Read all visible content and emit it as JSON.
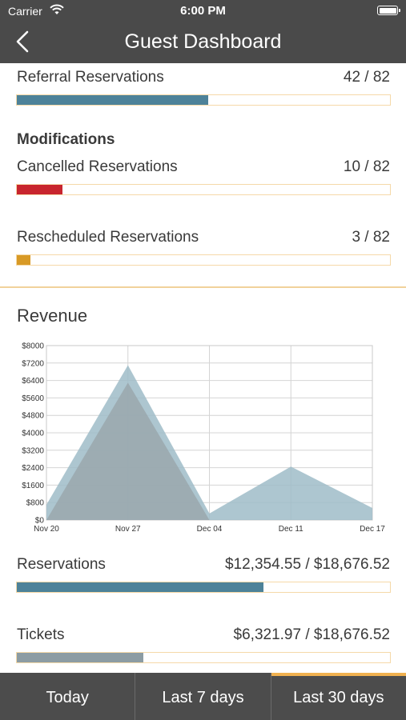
{
  "status": {
    "carrier": "Carrier",
    "time": "6:00 PM"
  },
  "nav": {
    "title": "Guest Dashboard"
  },
  "referral": {
    "label": "Referral Reservations",
    "value": "42 / 82",
    "fraction": 0.512,
    "color": "#4d8299"
  },
  "modifications": {
    "heading": "Modifications",
    "cancelled": {
      "label": "Cancelled Reservations",
      "value": "10 / 82",
      "fraction": 0.122,
      "color": "#c8252e"
    },
    "rescheduled": {
      "label": "Rescheduled Reservations",
      "value": "3 / 82",
      "fraction": 0.037,
      "color": "#d89a26"
    }
  },
  "revenue": {
    "title": "Revenue",
    "reservations": {
      "label": "Reservations",
      "value": "$12,354.55 / $18,676.52",
      "fraction": 0.6615,
      "color": "#4d8299"
    },
    "tickets": {
      "label": "Tickets",
      "value": "$6,321.97 / $18,676.52",
      "fraction": 0.3385,
      "color": "#8c9ca3"
    }
  },
  "chart_data": {
    "type": "area",
    "x": [
      "Nov 20",
      "Nov 27",
      "Dec 04",
      "Dec 11",
      "Dec 17"
    ],
    "y_ticks": [
      "$0",
      "$800",
      "$1600",
      "$2400",
      "$3200",
      "$4000",
      "$4800",
      "$5600",
      "$6400",
      "$7200",
      "$8000"
    ],
    "ylim": [
      0,
      8000
    ],
    "grid": true,
    "series": [
      {
        "values": [
          700,
          7100,
          300,
          2450,
          550
        ],
        "color": "#9fbcc8"
      },
      {
        "values": [
          0,
          6300,
          0,
          0,
          0
        ],
        "color": "#9aa7ad"
      }
    ]
  },
  "tabs": [
    {
      "label": "Today",
      "active": false
    },
    {
      "label": "Last 7 days",
      "active": false
    },
    {
      "label": "Last 30 days",
      "active": true
    }
  ]
}
